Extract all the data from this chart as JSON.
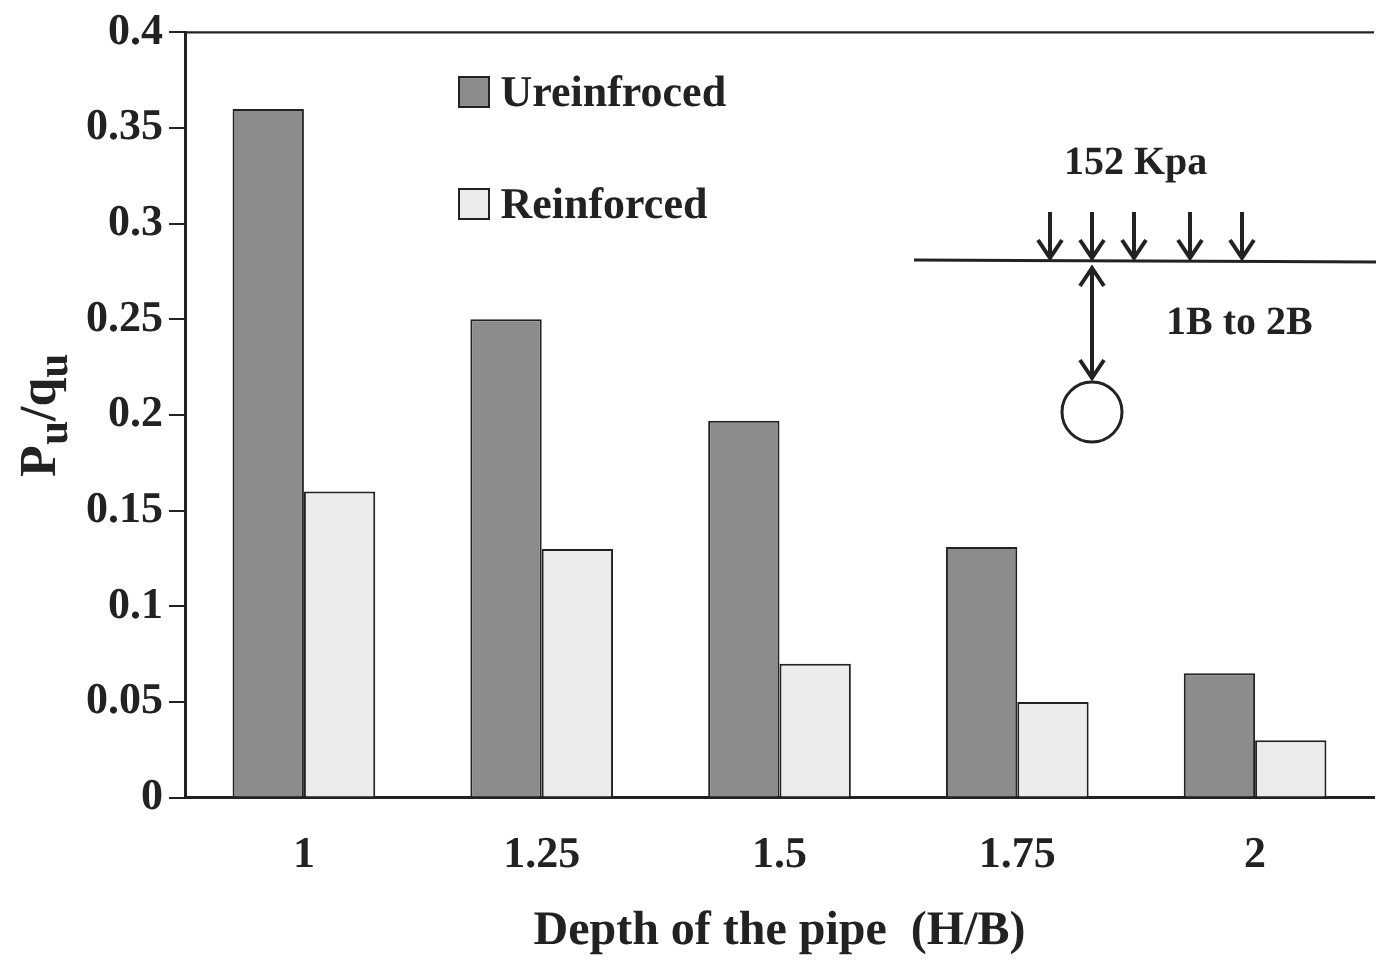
{
  "chart_data": {
    "type": "bar",
    "xlabel": "Depth of the pipe  (H/B)",
    "ylabel": "P$_{u}$/q$_{u}$",
    "categories": [
      "1",
      "1.25",
      "1.5",
      "1.75",
      "2"
    ],
    "series": [
      {
        "name": "Ureinfroced",
        "color": "#8c8c8c",
        "values": [
          0.36,
          0.25,
          0.197,
          0.131,
          0.065
        ]
      },
      {
        "name": "Reinforced",
        "color": "#ececec",
        "values": [
          0.16,
          0.13,
          0.07,
          0.05,
          0.03
        ]
      }
    ],
    "ylim": [
      0,
      0.4
    ],
    "yticks": [
      0,
      0.05,
      0.1,
      0.15,
      0.2,
      0.25,
      0.3,
      0.35,
      0.4
    ],
    "grid": false,
    "legend": "top left",
    "annotations": [
      "152 Kpa",
      "1B to 2B"
    ]
  }
}
